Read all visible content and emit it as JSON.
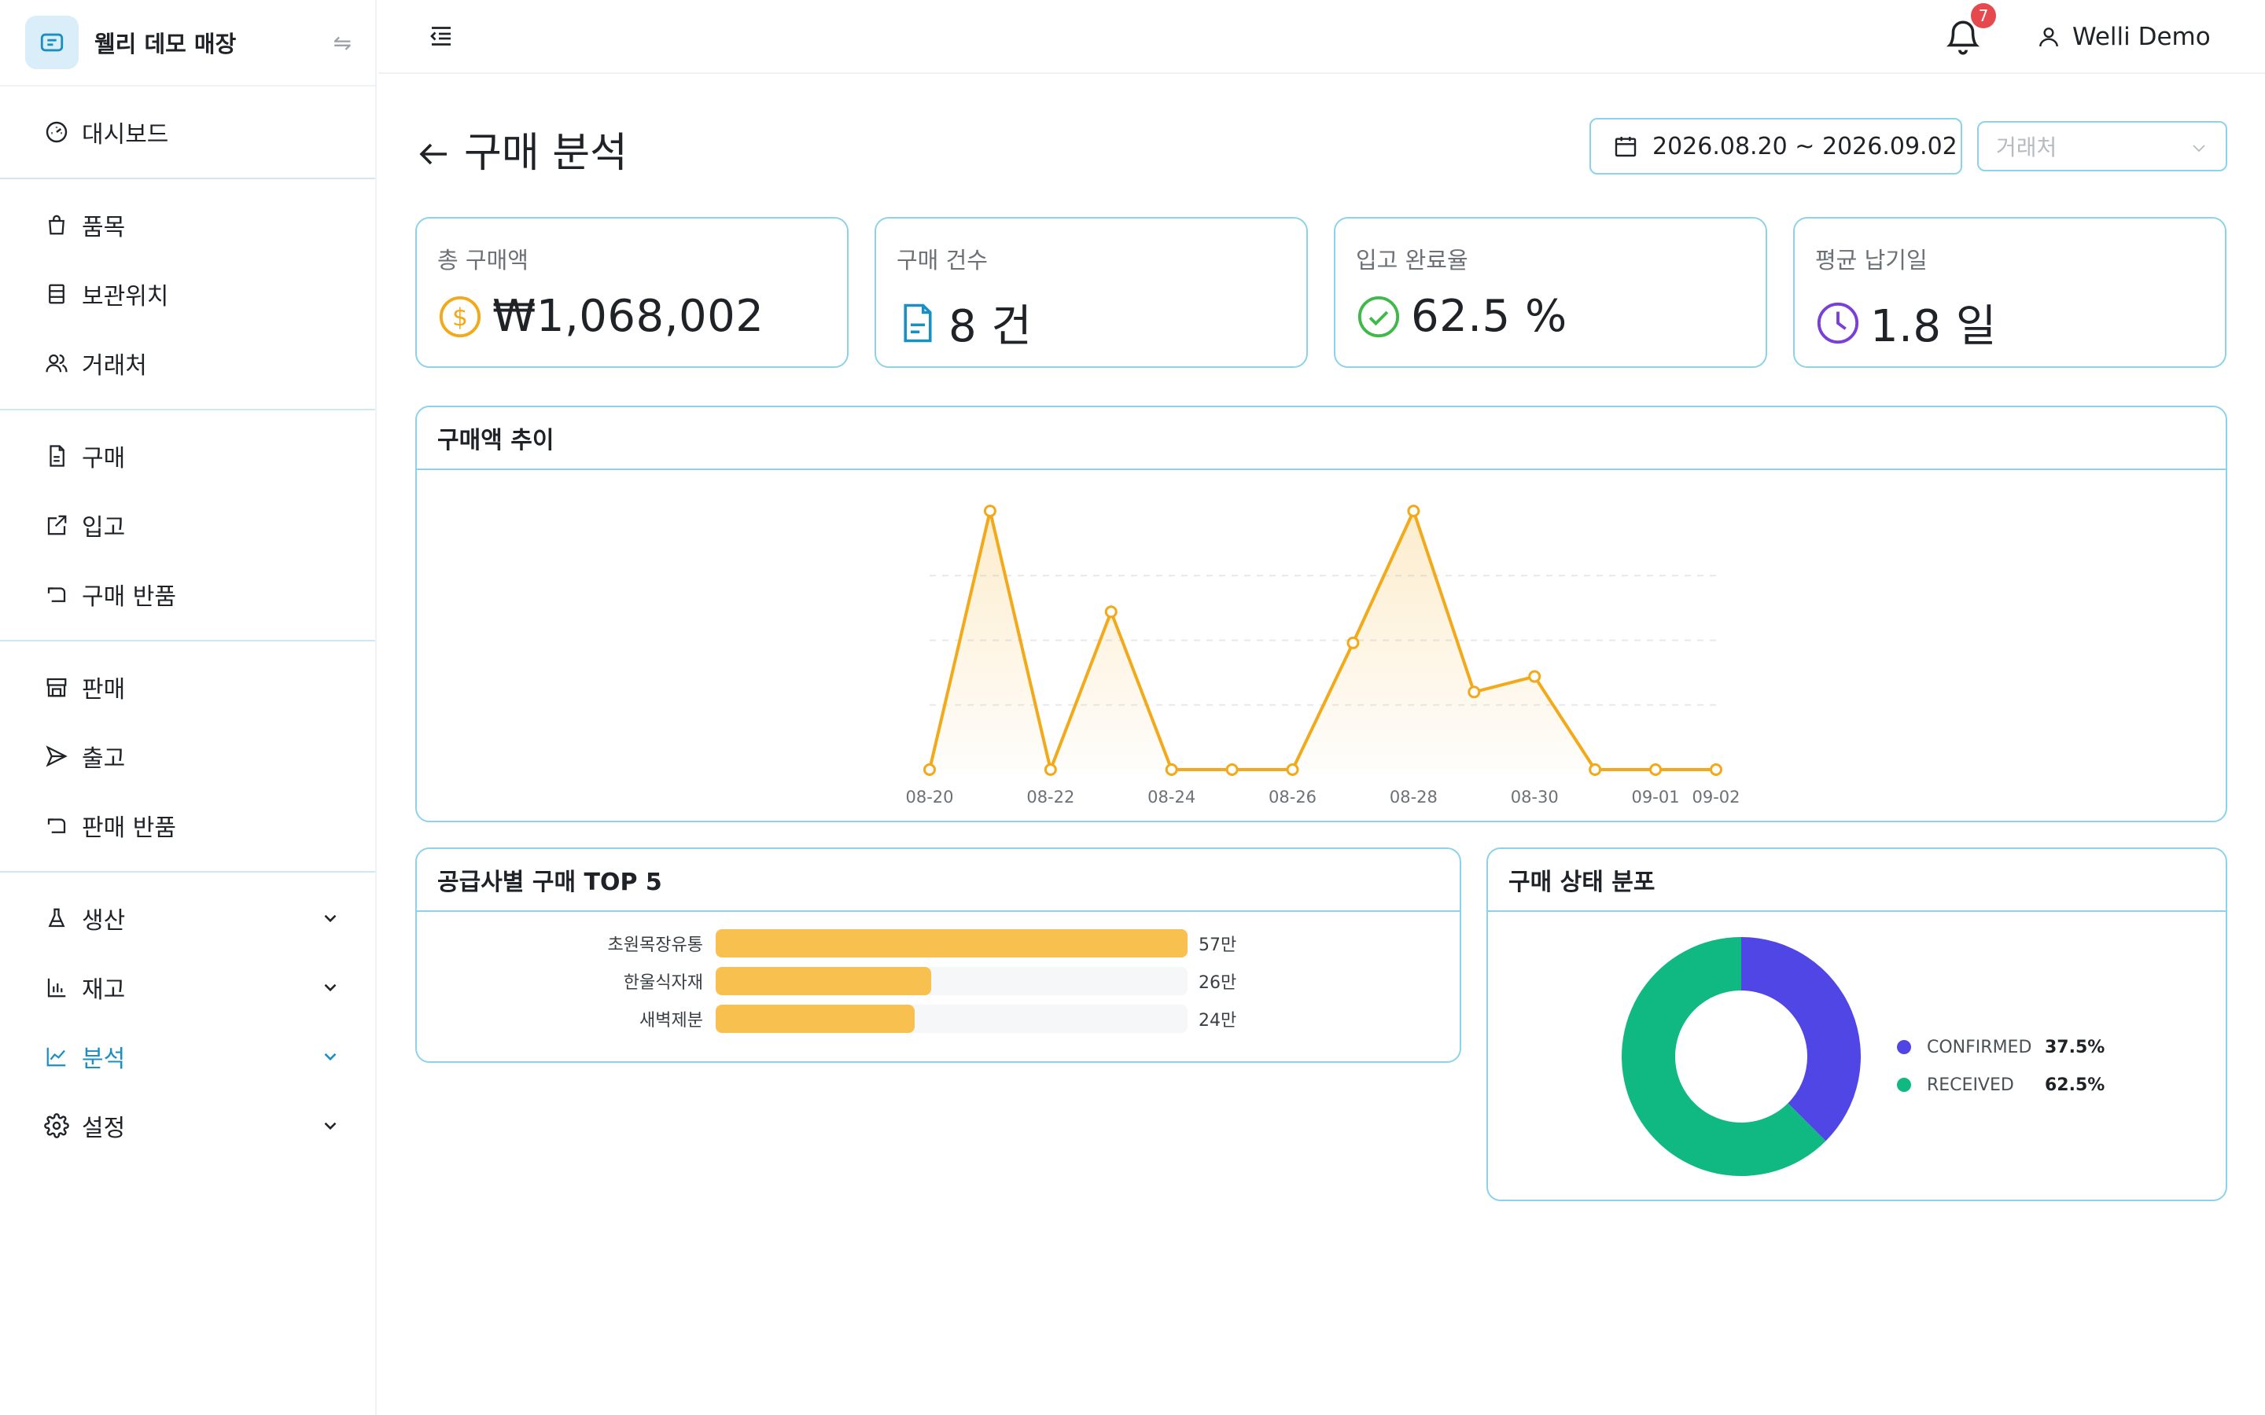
{
  "brand": {
    "name": "웰리 데모 매장"
  },
  "sidebar": {
    "groups": [
      [
        {
          "label": "대시보드",
          "icon": "dashboard-icon"
        }
      ],
      [
        {
          "label": "품목",
          "icon": "bag-icon"
        },
        {
          "label": "보관위치",
          "icon": "storage-icon"
        },
        {
          "label": "거래처",
          "icon": "partners-icon"
        }
      ],
      [
        {
          "label": "구매",
          "icon": "document-icon"
        },
        {
          "label": "입고",
          "icon": "receive-icon"
        },
        {
          "label": "구매 반품",
          "icon": "return-icon"
        }
      ],
      [
        {
          "label": "판매",
          "icon": "store-icon"
        },
        {
          "label": "출고",
          "icon": "send-icon"
        },
        {
          "label": "판매 반품",
          "icon": "return-icon"
        }
      ],
      [
        {
          "label": "생산",
          "icon": "flask-icon",
          "expandable": true
        },
        {
          "label": "재고",
          "icon": "inventory-chart-icon",
          "expandable": true
        },
        {
          "label": "분석",
          "icon": "analytics-icon",
          "expandable": true,
          "active": true
        },
        {
          "label": "설정",
          "icon": "gear-icon",
          "expandable": true
        }
      ]
    ]
  },
  "topbar": {
    "notification_count": "7",
    "user_name": "Welli Demo"
  },
  "page": {
    "title": "구매 분석",
    "date_range": "2026.08.20 ~ 2026.09.02",
    "vendor_placeholder": "거래처"
  },
  "kpis": [
    {
      "label": "총 구매액",
      "value": "₩1,068,002",
      "icon": "coin-icon",
      "color": "#f2a91a"
    },
    {
      "label": "구매 건수",
      "value": "8 건",
      "icon": "document-icon",
      "color": "#1a8fc4"
    },
    {
      "label": "입고 완료율",
      "value": "62.5 %",
      "icon": "check-circle-icon",
      "color": "#3fb94a"
    },
    {
      "label": "평균 납기일",
      "value": "1.8 일",
      "icon": "clock-icon",
      "color": "#7a3fd6"
    }
  ],
  "chart_titles": {
    "trend": "구매액 추이",
    "top5": "공급사별 구매 TOP 5",
    "status": "구매 상태 분포"
  },
  "chart_data": [
    {
      "type": "line",
      "title": "구매액 추이",
      "x": [
        "08-20",
        "08-21",
        "08-22",
        "08-23",
        "08-24",
        "08-25",
        "08-26",
        "08-27",
        "08-28",
        "08-29",
        "08-30",
        "08-31",
        "09-01",
        "09-02"
      ],
      "tick_labels": [
        "08-20",
        "08-22",
        "08-24",
        "08-26",
        "08-28",
        "08-30",
        "09-01",
        "09-02"
      ],
      "series": [
        {
          "values": [
            0,
            200000,
            0,
            122000,
            0,
            0,
            0,
            98000,
            200000,
            60000,
            72000,
            0,
            0,
            0
          ]
        }
      ],
      "ylim": [
        0,
        200000
      ],
      "grid": true,
      "color": "#f2a91a"
    },
    {
      "type": "bar",
      "orientation": "horizontal",
      "title": "공급사별 구매 TOP 5",
      "categories": [
        "초원목장유통",
        "한울식자재",
        "새벽제분"
      ],
      "values": [
        57,
        26,
        24
      ],
      "value_labels": [
        "57만",
        "26만",
        "24만"
      ],
      "color": "#f8c04e"
    },
    {
      "type": "pie",
      "title": "구매 상태 분포",
      "labels": [
        "CONFIRMED",
        "RECEIVED"
      ],
      "values": [
        37.5,
        62.5
      ],
      "value_labels": [
        "37.5%",
        "62.5%"
      ],
      "colors": [
        "#4f46e5",
        "#10b981"
      ],
      "legend": "right"
    }
  ]
}
